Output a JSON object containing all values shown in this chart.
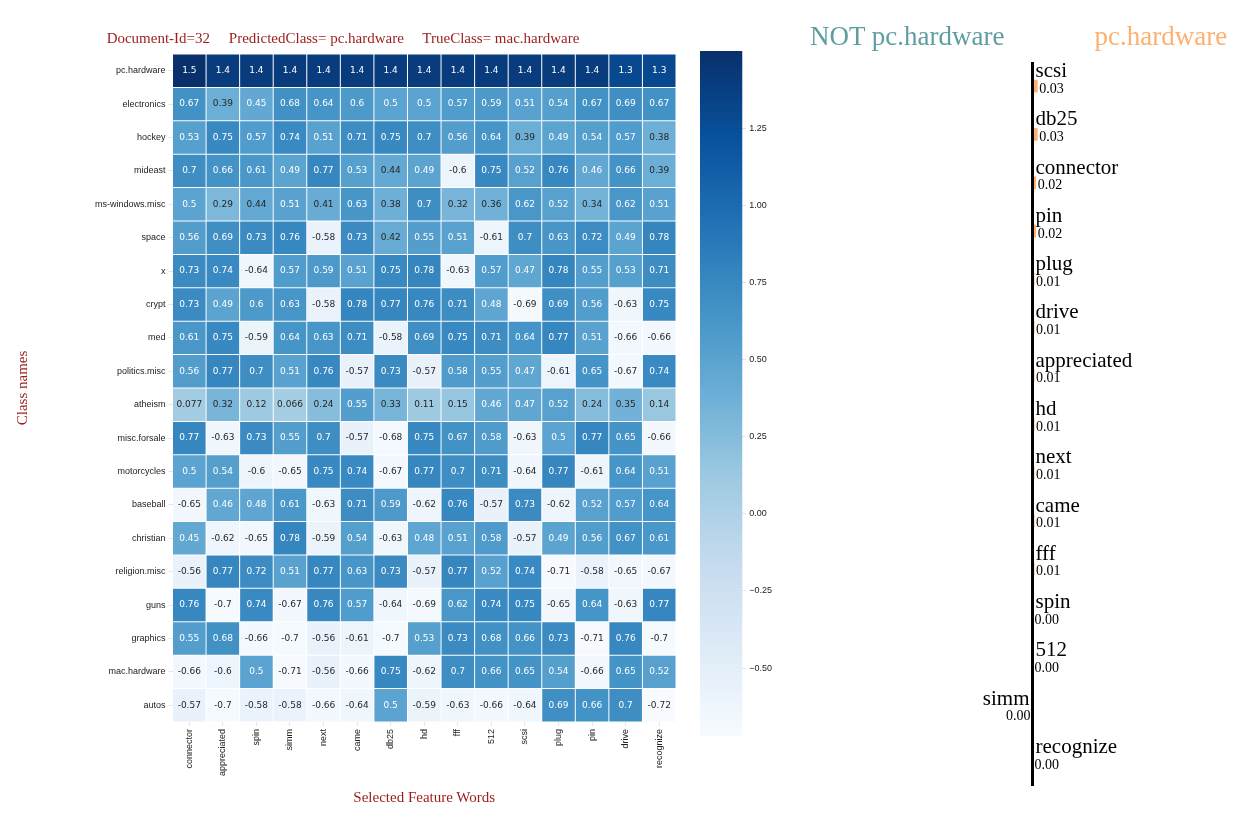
{
  "chart_data": [
    {
      "type": "heatmap",
      "title": "Document-Id=32     PredictedClass= pc.hardware     TrueClass= mac.hardware",
      "xlabel": "Selected Feature Words",
      "ylabel": "Class names",
      "categories": [
        "connector",
        "appreciated",
        "spin",
        "simm",
        "next",
        "came",
        "db25",
        "hd",
        "fff",
        "512",
        "scsi",
        "plug",
        "pin",
        "drive",
        "recognize"
      ],
      "y_categories": [
        "pc.hardware",
        "electronics",
        "hockey",
        "mideast",
        "ms-windows.misc",
        "space",
        "x",
        "crypt",
        "med",
        "politics.misc",
        "atheism",
        "misc.forsale",
        "motorcycles",
        "baseball",
        "christian",
        "religion.misc",
        "guns",
        "graphics",
        "mac.hardware",
        "autos"
      ],
      "cells": [
        [
          1.5,
          1.4,
          1.4,
          1.4,
          1.4,
          1.4,
          1.4,
          1.4,
          1.4,
          1.4,
          1.4,
          1.4,
          1.4,
          1.3,
          1.3
        ],
        [
          0.67,
          0.39,
          0.45,
          0.68,
          0.64,
          0.6,
          0.5,
          0.5,
          0.57,
          0.59,
          0.51,
          0.54,
          0.67,
          0.69,
          0.67
        ],
        [
          0.53,
          0.75,
          0.57,
          0.74,
          0.51,
          0.71,
          0.75,
          0.7,
          0.56,
          0.64,
          0.39,
          0.49,
          0.54,
          0.57,
          0.38
        ],
        [
          0.7,
          0.66,
          0.61,
          0.49,
          0.77,
          0.53,
          0.44,
          0.49,
          -0.6,
          0.75,
          0.52,
          0.76,
          0.46,
          0.66,
          0.39
        ],
        [
          0.5,
          0.29,
          0.44,
          0.51,
          0.41,
          0.63,
          0.38,
          0.7,
          0.32,
          0.36,
          0.62,
          0.52,
          0.34,
          0.62,
          0.51
        ],
        [
          0.56,
          0.69,
          0.73,
          0.76,
          -0.58,
          0.73,
          0.42,
          0.55,
          0.51,
          -0.61,
          0.7,
          0.63,
          0.72,
          0.49,
          0.78
        ],
        [
          0.73,
          0.74,
          -0.64,
          0.57,
          0.59,
          0.51,
          0.75,
          0.78,
          -0.63,
          0.57,
          0.47,
          0.78,
          0.55,
          0.53,
          0.71
        ],
        [
          0.73,
          0.49,
          0.6,
          0.63,
          -0.58,
          0.78,
          0.77,
          0.76,
          0.71,
          0.48,
          -0.69,
          0.69,
          0.56,
          -0.63,
          0.75
        ],
        [
          0.61,
          0.75,
          -0.59,
          0.64,
          0.63,
          0.71,
          -0.58,
          0.69,
          0.75,
          0.71,
          0.64,
          0.77,
          0.51,
          -0.66,
          -0.66
        ],
        [
          0.56,
          0.77,
          0.7,
          0.51,
          0.76,
          -0.57,
          0.73,
          -0.57,
          0.58,
          0.55,
          0.47,
          -0.61,
          0.65,
          -0.67,
          0.74
        ],
        [
          0.077,
          0.32,
          0.12,
          0.066,
          0.24,
          0.55,
          0.33,
          0.11,
          0.15,
          0.46,
          0.47,
          0.52,
          0.24,
          0.35,
          0.14
        ],
        [
          0.77,
          -0.63,
          0.73,
          0.55,
          0.7,
          -0.57,
          -0.68,
          0.75,
          0.67,
          0.58,
          -0.63,
          0.5,
          0.77,
          0.65,
          -0.66
        ],
        [
          0.5,
          0.54,
          -0.6,
          -0.65,
          0.75,
          0.74,
          -0.67,
          0.77,
          0.7,
          0.71,
          -0.64,
          0.77,
          -0.61,
          0.64,
          0.51
        ],
        [
          -0.65,
          0.46,
          0.48,
          0.61,
          -0.63,
          0.71,
          0.59,
          -0.62,
          0.76,
          -0.57,
          0.73,
          -0.62,
          0.52,
          0.57,
          0.64
        ],
        [
          0.45,
          -0.62,
          -0.65,
          0.78,
          -0.59,
          0.54,
          -0.63,
          0.48,
          0.51,
          0.58,
          -0.57,
          0.49,
          0.56,
          0.67,
          0.61
        ],
        [
          -0.56,
          0.77,
          0.72,
          0.51,
          0.77,
          0.63,
          0.73,
          -0.57,
          0.77,
          0.52,
          0.74,
          -0.71,
          -0.58,
          -0.65,
          -0.67
        ],
        [
          0.76,
          -0.7,
          0.74,
          -0.67,
          0.76,
          0.57,
          -0.64,
          -0.69,
          0.62,
          0.74,
          0.75,
          -0.65,
          0.64,
          -0.63,
          0.77
        ],
        [
          0.55,
          0.68,
          -0.66,
          -0.7,
          -0.56,
          -0.61,
          -0.7,
          0.53,
          0.73,
          0.68,
          0.66,
          0.73,
          -0.71,
          0.76,
          -0.7
        ],
        [
          -0.66,
          -0.6,
          0.5,
          -0.71,
          -0.56,
          -0.66,
          0.75,
          -0.62,
          0.7,
          0.66,
          0.65,
          0.54,
          -0.66,
          0.65,
          0.52
        ],
        [
          -0.57,
          -0.7,
          -0.58,
          -0.58,
          -0.66,
          -0.64,
          0.5,
          -0.59,
          -0.63,
          -0.66,
          -0.64,
          0.69,
          0.66,
          0.7,
          -0.72
        ]
      ],
      "data_labels": true,
      "clim": [
        -0.72,
        1.5
      ],
      "cticks": [
        {
          "value": -0.5,
          "label": "−0.50"
        },
        {
          "value": -0.25,
          "label": "−0.25"
        },
        {
          "value": 0,
          "label": "0.00"
        },
        {
          "value": 0.25,
          "label": "0.25"
        },
        {
          "value": 0.5,
          "label": "0.50"
        },
        {
          "value": 0.75,
          "label": "0.75"
        },
        {
          "value": 1,
          "label": "1.00"
        },
        {
          "value": 1.25,
          "label": "1.25"
        }
      ]
    },
    {
      "type": "bar",
      "orientation": "horizontal",
      "categories": [
        "scsi",
        "db25",
        "connector",
        "pin",
        "plug",
        "drive",
        "appreciated",
        "hd",
        "next",
        "came",
        "fff",
        "spin",
        "512",
        "simm",
        "recognize"
      ],
      "series": [
        {
          "name": "NOT pc.hardware",
          "color": "#5f9ea0",
          "values": [
            null,
            null,
            null,
            null,
            null,
            null,
            null,
            null,
            null,
            null,
            null,
            null,
            null,
            0,
            null
          ],
          "value_labels": [
            null,
            null,
            null,
            null,
            null,
            null,
            null,
            null,
            null,
            null,
            null,
            null,
            null,
            "0.00",
            null
          ]
        },
        {
          "name": "pc.hardware",
          "color": "#fdb070",
          "values": [
            0.03,
            0.03,
            0.02,
            0.02,
            0.01,
            0.01,
            0.01,
            0.01,
            0.01,
            0.01,
            0.01,
            0,
            0,
            null,
            0
          ],
          "value_labels": [
            "0.03",
            "0.03",
            "0.02",
            "0.02",
            "0.01",
            "0.01",
            "0.01",
            "0.01",
            "0.01",
            "0.01",
            "0.01",
            "0.00",
            "0.00",
            null,
            "0.00"
          ]
        }
      ]
    }
  ]
}
